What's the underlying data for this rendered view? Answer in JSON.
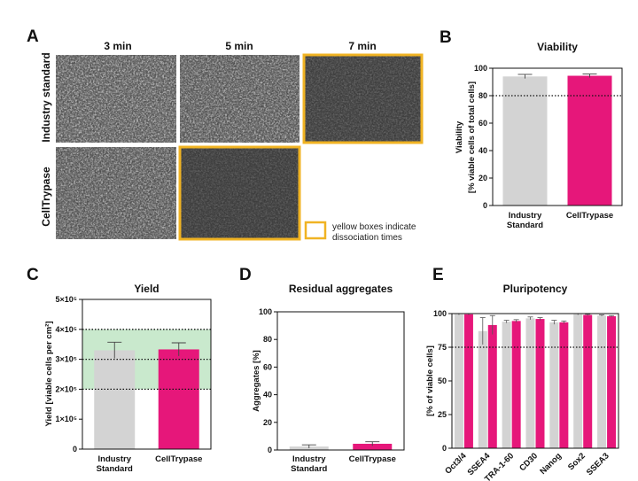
{
  "colors": {
    "grey": "#d3d3d3",
    "magenta": "#e6177a",
    "gold": "#f0b323",
    "band": "#c9e9cd"
  },
  "panel_A": {
    "letter": "A",
    "col_headers": [
      "3 min",
      "5 min",
      "7 min"
    ],
    "row_labels": [
      {
        "text": "Industry standard",
        "color": "#9a9a9a"
      },
      {
        "text": "CellTrypase",
        "color": "#e6177a"
      }
    ],
    "legend_text": [
      "yellow boxes indicate",
      "dissociation times"
    ],
    "highlighted": [
      [
        0,
        2
      ],
      [
        1,
        1
      ]
    ]
  },
  "chart_data": [
    {
      "id": "B",
      "type": "bar",
      "letter": "B",
      "title": "Viability",
      "ylabel": [
        "Viability",
        "[% viable cells of total cells]"
      ],
      "categories": [
        [
          "Industry",
          "Standard"
        ],
        [
          "CellTrypase"
        ]
      ],
      "values": [
        94,
        94.5
      ],
      "errors": [
        1.5,
        1.3
      ],
      "ylim": [
        0,
        100
      ],
      "yticks": [
        0,
        20,
        40,
        60,
        80,
        100
      ],
      "ytick_labels": [
        "0",
        "20",
        "40",
        "60",
        "80",
        "100"
      ],
      "ref_lines": [
        80
      ]
    },
    {
      "id": "C",
      "type": "bar",
      "letter": "C",
      "title": "Yield",
      "ylabel": [
        "Yield [viable cells per cm²]"
      ],
      "categories": [
        [
          "Industry",
          "Standard"
        ],
        [
          "CellTrypase"
        ]
      ],
      "values": [
        330000,
        333000
      ],
      "errors": [
        27000,
        22000
      ],
      "ylim": [
        0,
        500000
      ],
      "yticks": [
        0,
        100000,
        200000,
        300000,
        400000,
        500000
      ],
      "ytick_labels": [
        "0",
        "1×10⁵",
        "2×10⁵",
        "3×10⁵",
        "4×10⁵",
        "5×10⁵"
      ],
      "ref_lines": [
        200000,
        300000,
        400000
      ],
      "band": [
        200000,
        400000
      ]
    },
    {
      "id": "D",
      "type": "bar",
      "letter": "D",
      "title": "Residual aggregates",
      "ylabel": [
        "Aggregates [%]"
      ],
      "categories": [
        [
          "Industry",
          "Standard"
        ],
        [
          "CellTrypase"
        ]
      ],
      "values": [
        2.5,
        4.5
      ],
      "errors": [
        1.2,
        1.5
      ],
      "ylim": [
        0,
        100
      ],
      "yticks": [
        0,
        20,
        40,
        60,
        80,
        100
      ],
      "ytick_labels": [
        "0",
        "20",
        "40",
        "60",
        "80",
        "100"
      ],
      "ref_lines": []
    },
    {
      "id": "E",
      "type": "bar",
      "letter": "E",
      "title": "Pluripotency",
      "ylabel": [
        "[% of viable cells]"
      ],
      "categories": [
        "Oct3/4",
        "SSEA4",
        "TRA-1-60",
        "CD30",
        "Nanog",
        "Sox2",
        "SSEA3"
      ],
      "series": [
        {
          "values": [
            99.5,
            87,
            94,
            96.5,
            93.5,
            99.5,
            98.5
          ],
          "errors": [
            0.5,
            10,
            1,
            1,
            1.5,
            0.5,
            0.5
          ]
        },
        {
          "values": [
            99.5,
            91.5,
            94.5,
            96,
            93.5,
            99,
            98
          ],
          "errors": [
            0.5,
            7,
            1,
            1,
            1,
            0.5,
            0.5
          ]
        }
      ],
      "ylim": [
        0,
        100
      ],
      "yticks": [
        0,
        25,
        50,
        75,
        100
      ],
      "ytick_labels": [
        "0",
        "25",
        "50",
        "75",
        "100"
      ],
      "ref_lines": [
        75
      ]
    }
  ]
}
